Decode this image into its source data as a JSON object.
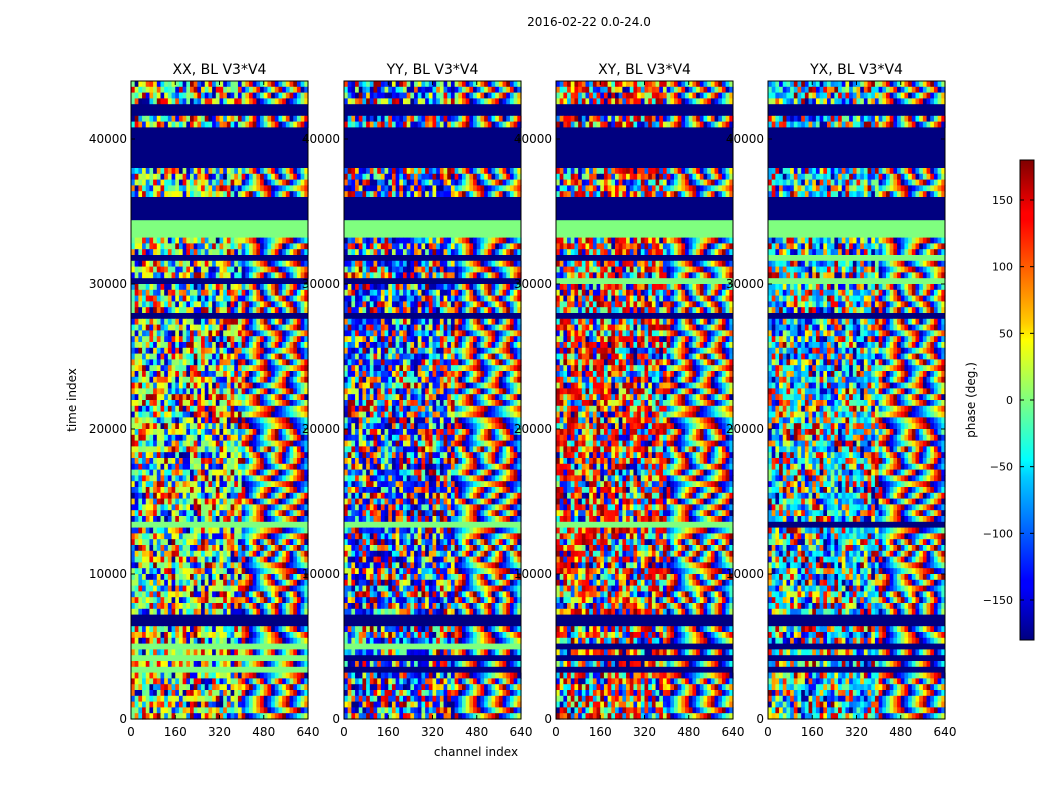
{
  "figure": {
    "suptitle": "2016-02-22 0.0-24.0",
    "colorbar_label": "phase (deg.)",
    "colormap": "jet"
  },
  "chart_data": {
    "type": "heatmap",
    "title": "2016-02-22 0.0-24.0",
    "xlabel": "channel index",
    "ylabel": "time index",
    "xlim": [
      0,
      640
    ],
    "ylim": [
      0,
      44000
    ],
    "x_ticks": [
      0,
      160,
      320,
      480,
      640
    ],
    "y_ticks": [
      0,
      10000,
      20000,
      30000,
      40000
    ],
    "color_range": [
      -180,
      180
    ],
    "colorbar_ticks": [
      -150,
      -100,
      -50,
      0,
      50,
      100,
      150
    ],
    "panels": [
      {
        "title": "XX, BL V3*V4",
        "left_tint": 15,
        "right_fringe": true
      },
      {
        "title": "YY, BL V3*V4",
        "left_tint": -140,
        "right_fringe": true
      },
      {
        "title": "XY, BL V3*V4",
        "left_tint": 140,
        "right_fringe": true
      },
      {
        "title": "YX, BL V3*V4",
        "left_tint": -60,
        "right_fringe": true
      }
    ],
    "flagged_bands": [
      {
        "start": 6500,
        "end": 7200,
        "phase": -180
      },
      {
        "start": 34500,
        "end": 35800,
        "phase": -180
      },
      {
        "start": 38200,
        "end": 40800,
        "phase": -180
      },
      {
        "start": 41800,
        "end": 42300,
        "phase": -180
      }
    ],
    "zero_phase_bands": [
      {
        "start": 33200,
        "end": 34500,
        "phase": 0
      }
    ]
  }
}
